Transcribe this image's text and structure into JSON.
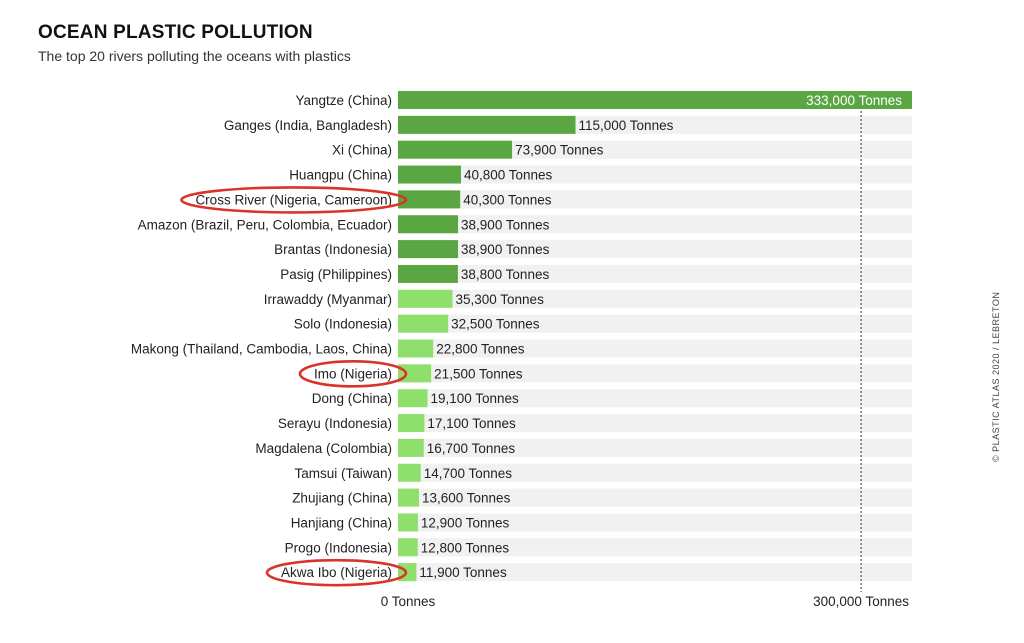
{
  "header": {
    "title": "OCEAN PLASTIC POLLUTION",
    "subtitle": "The top 20 rivers polluting the oceans with plastics"
  },
  "credit": "© PLASTIC ATLAS 2020 / LEBRETON",
  "colors": {
    "dark_green": "#5aa643",
    "light_green": "#8fdf6d",
    "row_band": "#f1f1f1",
    "highlight_circle": "#d9332b"
  },
  "chart_data": {
    "type": "bar",
    "orientation": "horizontal",
    "title": "OCEAN PLASTIC POLLUTION",
    "subtitle": "The top 20 rivers polluting the oceans with plastics",
    "xlabel": "",
    "ylabel": "",
    "xlim": [
      0,
      333000
    ],
    "x_tick_labels": [
      {
        "value": 0,
        "label": "0 Tonnes"
      },
      {
        "value": 300000,
        "label": "300,000 Tonnes"
      }
    ],
    "categories": [
      "Yangtze (China)",
      "Ganges (India, Bangladesh)",
      "Xi (China)",
      "Huangpu (China)",
      "Cross River (Nigeria, Cameroon)",
      "Amazon (Brazil, Peru, Colombia, Ecuador)",
      "Brantas (Indonesia)",
      "Pasig (Philippines)",
      "Irrawaddy (Myanmar)",
      "Solo (Indonesia)",
      "Makong (Thailand, Cambodia, Laos, China)",
      "Imo (Nigeria)",
      "Dong (China)",
      "Serayu (Indonesia)",
      "Magdalena (Colombia)",
      "Tamsui (Taiwan)",
      "Zhujiang (China)",
      "Hanjiang (China)",
      "Progo (Indonesia)",
      "Akwa Ibo (Nigeria)"
    ],
    "values": [
      333000,
      115000,
      73900,
      40800,
      40300,
      38900,
      38900,
      38800,
      35300,
      32500,
      22800,
      21500,
      19100,
      17100,
      16700,
      14700,
      13600,
      12900,
      12800,
      11900
    ],
    "value_labels": [
      "333,000 Tonnes",
      "115,000 Tonnes",
      "73,900 Tonnes",
      "40,800 Tonnes",
      "40,300 Tonnes",
      "38,900 Tonnes",
      "38,900 Tonnes",
      "38,800 Tonnes",
      "35,300 Tonnes",
      "32,500 Tonnes",
      "22,800 Tonnes",
      "21,500 Tonnes",
      "19,100 Tonnes",
      "17,100 Tonnes",
      "16,700 Tonnes",
      "14,700 Tonnes",
      "13,600 Tonnes",
      "12,900 Tonnes",
      "12,800 Tonnes",
      "11,900 Tonnes"
    ],
    "bar_shade": [
      "dark",
      "dark",
      "dark",
      "dark",
      "dark",
      "dark",
      "dark",
      "dark",
      "light",
      "light",
      "light",
      "light",
      "light",
      "light",
      "light",
      "light",
      "light",
      "light",
      "light",
      "light"
    ],
    "highlighted": [
      "Cross River (Nigeria, Cameroon)",
      "Imo (Nigeria)",
      "Akwa Ibo (Nigeria)"
    ],
    "reference_line": 300000,
    "grid": false,
    "legend": "none"
  }
}
